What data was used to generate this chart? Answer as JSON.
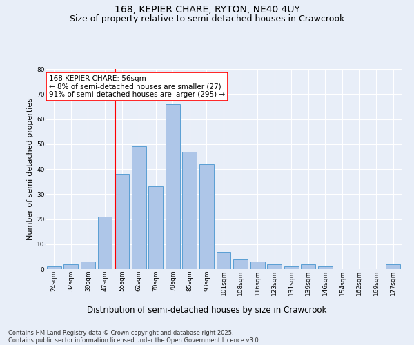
{
  "title": "168, KEPIER CHARE, RYTON, NE40 4UY",
  "subtitle": "Size of property relative to semi-detached houses in Crawcrook",
  "xlabel": "Distribution of semi-detached houses by size in Crawcrook",
  "ylabel": "Number of semi-detached properties",
  "categories": [
    "24sqm",
    "32sqm",
    "39sqm",
    "47sqm",
    "55sqm",
    "62sqm",
    "70sqm",
    "78sqm",
    "85sqm",
    "93sqm",
    "101sqm",
    "108sqm",
    "116sqm",
    "123sqm",
    "131sqm",
    "139sqm",
    "146sqm",
    "154sqm",
    "162sqm",
    "169sqm",
    "177sqm"
  ],
  "values": [
    1,
    2,
    3,
    21,
    38,
    49,
    33,
    66,
    47,
    42,
    7,
    4,
    3,
    2,
    1,
    2,
    1,
    0,
    0,
    0,
    2
  ],
  "bar_color": "#aec6e8",
  "bar_edge_color": "#5a9fd4",
  "vline_x_index": 4,
  "vline_color": "red",
  "annotation_title": "168 KEPIER CHARE: 56sqm",
  "annotation_line1": "← 8% of semi-detached houses are smaller (27)",
  "annotation_line2": "91% of semi-detached houses are larger (295) →",
  "annotation_box_color": "white",
  "annotation_box_edge": "red",
  "ylim": [
    0,
    80
  ],
  "yticks": [
    0,
    10,
    20,
    30,
    40,
    50,
    60,
    70,
    80
  ],
  "footnote": "Contains HM Land Registry data © Crown copyright and database right 2025.\nContains public sector information licensed under the Open Government Licence v3.0.",
  "bg_color": "#e8eef8",
  "plot_bg_color": "#e8eef8",
  "grid_color": "white",
  "title_fontsize": 10,
  "subtitle_fontsize": 9,
  "xlabel_fontsize": 8.5,
  "ylabel_fontsize": 8,
  "footnote_fontsize": 6,
  "annotation_fontsize": 7.5,
  "tick_fontsize": 6.5
}
